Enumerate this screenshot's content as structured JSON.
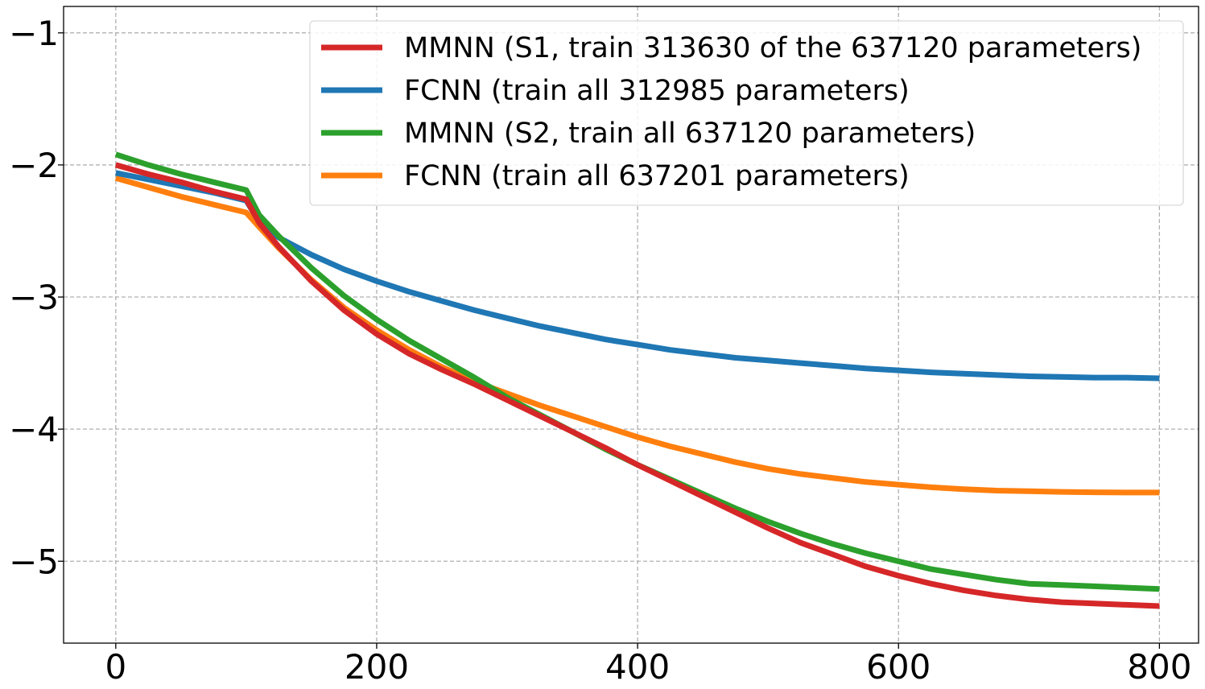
{
  "chart_data": {
    "type": "line",
    "title": "",
    "xlabel": "",
    "ylabel": "",
    "xlim": [
      -40,
      830
    ],
    "ylim": [
      -5.62,
      -0.8
    ],
    "grid": true,
    "legend_position": "top-right",
    "x_ticks": [
      0,
      200,
      400,
      600,
      800
    ],
    "y_ticks": [
      -1,
      -2,
      -3,
      -4,
      -5
    ],
    "x_tick_labels": [
      "0",
      "200",
      "400",
      "600",
      "800"
    ],
    "y_tick_labels": [
      "−1",
      "−2",
      "−3",
      "−4",
      "−5"
    ],
    "series": [
      {
        "name": "MMNN (S1, train 313630 of the 637120 parameters)",
        "color": "#d62728",
        "x": [
          0,
          25,
          50,
          75,
          100,
          110,
          125,
          150,
          175,
          200,
          225,
          250,
          275,
          300,
          325,
          350,
          375,
          400,
          425,
          450,
          475,
          500,
          525,
          550,
          575,
          600,
          625,
          650,
          675,
          700,
          725,
          750,
          775,
          800
        ],
        "y": [
          -2.0,
          -2.07,
          -2.13,
          -2.2,
          -2.26,
          -2.44,
          -2.62,
          -2.88,
          -3.1,
          -3.28,
          -3.43,
          -3.55,
          -3.66,
          -3.78,
          -3.9,
          -4.02,
          -4.14,
          -4.27,
          -4.39,
          -4.51,
          -4.63,
          -4.75,
          -4.86,
          -4.95,
          -5.04,
          -5.11,
          -5.17,
          -5.22,
          -5.26,
          -5.29,
          -5.31,
          -5.32,
          -5.33,
          -5.34
        ]
      },
      {
        "name": "FCNN (train all 312985 parameters)",
        "color": "#1f77b4",
        "x": [
          0,
          25,
          50,
          75,
          100,
          110,
          125,
          150,
          175,
          200,
          225,
          250,
          275,
          300,
          325,
          350,
          375,
          400,
          425,
          450,
          475,
          500,
          525,
          550,
          575,
          600,
          625,
          650,
          675,
          700,
          725,
          750,
          775,
          800
        ],
        "y": [
          -2.06,
          -2.11,
          -2.16,
          -2.21,
          -2.27,
          -2.43,
          -2.55,
          -2.68,
          -2.79,
          -2.88,
          -2.96,
          -3.03,
          -3.1,
          -3.16,
          -3.22,
          -3.27,
          -3.32,
          -3.36,
          -3.4,
          -3.43,
          -3.46,
          -3.48,
          -3.5,
          -3.52,
          -3.54,
          -3.555,
          -3.57,
          -3.58,
          -3.59,
          -3.6,
          -3.605,
          -3.61,
          -3.61,
          -3.615
        ]
      },
      {
        "name": "MMNN (S2, train all 637120 parameters)",
        "color": "#2ca02c",
        "x": [
          0,
          25,
          50,
          75,
          100,
          110,
          125,
          150,
          175,
          200,
          225,
          250,
          275,
          300,
          325,
          350,
          375,
          400,
          425,
          450,
          475,
          500,
          525,
          550,
          575,
          600,
          625,
          650,
          675,
          700,
          725,
          750,
          775,
          800
        ],
        "y": [
          -1.92,
          -2.0,
          -2.07,
          -2.13,
          -2.19,
          -2.38,
          -2.54,
          -2.78,
          -2.99,
          -3.17,
          -3.33,
          -3.47,
          -3.61,
          -3.76,
          -3.89,
          -4.02,
          -4.15,
          -4.27,
          -4.38,
          -4.49,
          -4.6,
          -4.7,
          -4.79,
          -4.87,
          -4.94,
          -5.0,
          -5.06,
          -5.1,
          -5.14,
          -5.17,
          -5.18,
          -5.19,
          -5.2,
          -5.21
        ]
      },
      {
        "name": "FCNN (train all 637201 parameters)",
        "color": "#ff7f0e",
        "x": [
          0,
          25,
          50,
          75,
          100,
          110,
          125,
          150,
          175,
          200,
          225,
          250,
          275,
          300,
          325,
          350,
          375,
          400,
          425,
          450,
          475,
          500,
          525,
          550,
          575,
          600,
          625,
          650,
          675,
          700,
          725,
          750,
          775,
          800
        ],
        "y": [
          -2.1,
          -2.17,
          -2.24,
          -2.3,
          -2.36,
          -2.47,
          -2.63,
          -2.87,
          -3.08,
          -3.25,
          -3.4,
          -3.53,
          -3.64,
          -3.73,
          -3.82,
          -3.9,
          -3.98,
          -4.06,
          -4.13,
          -4.19,
          -4.25,
          -4.3,
          -4.34,
          -4.37,
          -4.4,
          -4.42,
          -4.44,
          -4.455,
          -4.465,
          -4.47,
          -4.475,
          -4.478,
          -4.48,
          -4.48
        ]
      }
    ]
  }
}
